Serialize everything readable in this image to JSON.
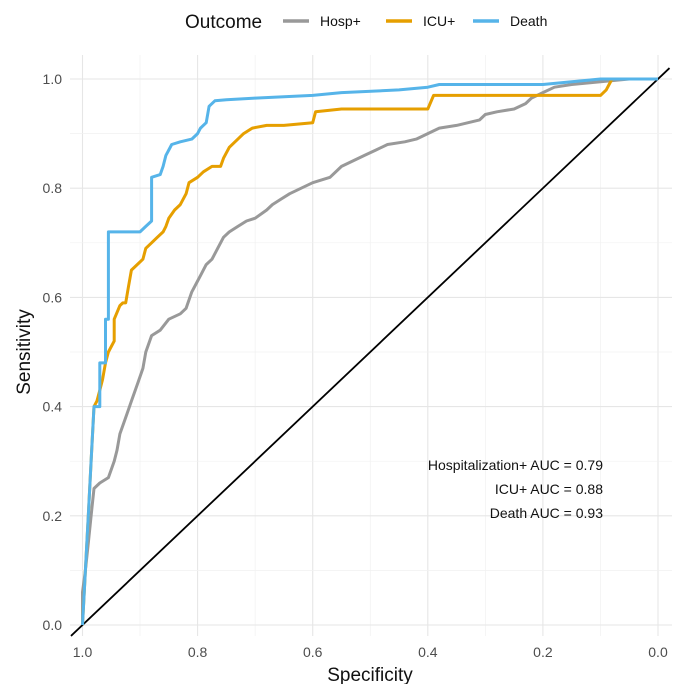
{
  "chart_data": {
    "type": "line",
    "xlabel": "Specificity",
    "ylabel": "Sensitivity",
    "xlim": [
      1.0,
      0.0
    ],
    "ylim": [
      0.0,
      1.0
    ],
    "x_reversed": true,
    "grid": true,
    "xticks": [
      "1.0",
      "0.8",
      "0.6",
      "0.4",
      "0.2",
      "0.0"
    ],
    "yticks": [
      "0.0",
      "0.2",
      "0.4",
      "0.6",
      "0.8",
      "1.0"
    ],
    "legend": {
      "title": "Outcome",
      "position": "top",
      "entries": [
        "Hosp+",
        "ICU+",
        "Death"
      ]
    },
    "reference_line": {
      "from": [
        1.0,
        0.0
      ],
      "to": [
        0.0,
        1.0
      ],
      "color": "#000000"
    },
    "annotations": [
      {
        "label": "Hospitalization+ AUC = ",
        "value": "0.79"
      },
      {
        "label": "ICU+ AUC = ",
        "value": "0.88"
      },
      {
        "label": "Death AUC = ",
        "value": "0.93"
      }
    ],
    "series": [
      {
        "name": "Hosp+",
        "color": "#999999",
        "points": [
          [
            1.0,
            0.0
          ],
          [
            1.0,
            0.06
          ],
          [
            0.995,
            0.1
          ],
          [
            0.99,
            0.15
          ],
          [
            0.985,
            0.2
          ],
          [
            0.98,
            0.25
          ],
          [
            0.97,
            0.26
          ],
          [
            0.955,
            0.27
          ],
          [
            0.945,
            0.3
          ],
          [
            0.94,
            0.32
          ],
          [
            0.935,
            0.35
          ],
          [
            0.925,
            0.38
          ],
          [
            0.915,
            0.41
          ],
          [
            0.905,
            0.44
          ],
          [
            0.895,
            0.47
          ],
          [
            0.89,
            0.5
          ],
          [
            0.88,
            0.53
          ],
          [
            0.865,
            0.54
          ],
          [
            0.85,
            0.56
          ],
          [
            0.83,
            0.57
          ],
          [
            0.82,
            0.58
          ],
          [
            0.81,
            0.61
          ],
          [
            0.8,
            0.63
          ],
          [
            0.795,
            0.64
          ],
          [
            0.785,
            0.66
          ],
          [
            0.775,
            0.67
          ],
          [
            0.765,
            0.69
          ],
          [
            0.755,
            0.71
          ],
          [
            0.745,
            0.72
          ],
          [
            0.73,
            0.73
          ],
          [
            0.715,
            0.74
          ],
          [
            0.7,
            0.745
          ],
          [
            0.68,
            0.76
          ],
          [
            0.67,
            0.77
          ],
          [
            0.655,
            0.78
          ],
          [
            0.64,
            0.79
          ],
          [
            0.62,
            0.8
          ],
          [
            0.6,
            0.81
          ],
          [
            0.57,
            0.82
          ],
          [
            0.55,
            0.84
          ],
          [
            0.53,
            0.85
          ],
          [
            0.51,
            0.86
          ],
          [
            0.49,
            0.87
          ],
          [
            0.47,
            0.88
          ],
          [
            0.44,
            0.885
          ],
          [
            0.42,
            0.89
          ],
          [
            0.4,
            0.9
          ],
          [
            0.38,
            0.91
          ],
          [
            0.35,
            0.915
          ],
          [
            0.33,
            0.92
          ],
          [
            0.31,
            0.925
          ],
          [
            0.3,
            0.935
          ],
          [
            0.28,
            0.94
          ],
          [
            0.25,
            0.945
          ],
          [
            0.23,
            0.955
          ],
          [
            0.22,
            0.965
          ],
          [
            0.2,
            0.975
          ],
          [
            0.18,
            0.985
          ],
          [
            0.15,
            0.99
          ],
          [
            0.1,
            0.995
          ],
          [
            0.05,
            1.0
          ],
          [
            0.0,
            1.0
          ]
        ]
      },
      {
        "name": "ICU+",
        "color": "#E69F00",
        "points": [
          [
            1.0,
            0.0
          ],
          [
            0.995,
            0.1
          ],
          [
            0.99,
            0.2
          ],
          [
            0.985,
            0.3
          ],
          [
            0.98,
            0.4
          ],
          [
            0.975,
            0.41
          ],
          [
            0.97,
            0.43
          ],
          [
            0.965,
            0.45
          ],
          [
            0.96,
            0.48
          ],
          [
            0.955,
            0.5
          ],
          [
            0.95,
            0.51
          ],
          [
            0.945,
            0.52
          ],
          [
            0.945,
            0.56
          ],
          [
            0.935,
            0.585
          ],
          [
            0.93,
            0.59
          ],
          [
            0.925,
            0.59
          ],
          [
            0.92,
            0.62
          ],
          [
            0.915,
            0.65
          ],
          [
            0.905,
            0.66
          ],
          [
            0.895,
            0.67
          ],
          [
            0.89,
            0.69
          ],
          [
            0.88,
            0.7
          ],
          [
            0.87,
            0.71
          ],
          [
            0.86,
            0.72
          ],
          [
            0.855,
            0.73
          ],
          [
            0.85,
            0.745
          ],
          [
            0.84,
            0.76
          ],
          [
            0.83,
            0.77
          ],
          [
            0.82,
            0.79
          ],
          [
            0.815,
            0.81
          ],
          [
            0.8,
            0.82
          ],
          [
            0.79,
            0.83
          ],
          [
            0.775,
            0.84
          ],
          [
            0.76,
            0.84
          ],
          [
            0.755,
            0.855
          ],
          [
            0.745,
            0.875
          ],
          [
            0.73,
            0.89
          ],
          [
            0.72,
            0.9
          ],
          [
            0.705,
            0.91
          ],
          [
            0.68,
            0.915
          ],
          [
            0.65,
            0.915
          ],
          [
            0.6,
            0.92
          ],
          [
            0.595,
            0.94
          ],
          [
            0.55,
            0.945
          ],
          [
            0.5,
            0.945
          ],
          [
            0.45,
            0.945
          ],
          [
            0.4,
            0.945
          ],
          [
            0.39,
            0.97
          ],
          [
            0.3,
            0.97
          ],
          [
            0.2,
            0.97
          ],
          [
            0.1,
            0.97
          ],
          [
            0.09,
            0.98
          ],
          [
            0.085,
            0.99
          ],
          [
            0.08,
            1.0
          ],
          [
            0.0,
            1.0
          ]
        ]
      },
      {
        "name": "Death",
        "color": "#56B4E9",
        "points": [
          [
            1.0,
            0.0
          ],
          [
            0.995,
            0.1
          ],
          [
            0.99,
            0.2
          ],
          [
            0.985,
            0.3
          ],
          [
            0.98,
            0.4
          ],
          [
            0.97,
            0.4
          ],
          [
            0.97,
            0.48
          ],
          [
            0.96,
            0.48
          ],
          [
            0.96,
            0.56
          ],
          [
            0.955,
            0.56
          ],
          [
            0.955,
            0.72
          ],
          [
            0.94,
            0.72
          ],
          [
            0.9,
            0.72
          ],
          [
            0.89,
            0.73
          ],
          [
            0.88,
            0.74
          ],
          [
            0.88,
            0.82
          ],
          [
            0.865,
            0.825
          ],
          [
            0.86,
            0.84
          ],
          [
            0.855,
            0.86
          ],
          [
            0.85,
            0.87
          ],
          [
            0.845,
            0.88
          ],
          [
            0.83,
            0.885
          ],
          [
            0.81,
            0.89
          ],
          [
            0.8,
            0.9
          ],
          [
            0.795,
            0.91
          ],
          [
            0.785,
            0.92
          ],
          [
            0.78,
            0.95
          ],
          [
            0.77,
            0.96
          ],
          [
            0.75,
            0.962
          ],
          [
            0.7,
            0.965
          ],
          [
            0.6,
            0.97
          ],
          [
            0.55,
            0.975
          ],
          [
            0.45,
            0.98
          ],
          [
            0.4,
            0.985
          ],
          [
            0.38,
            0.99
          ],
          [
            0.3,
            0.99
          ],
          [
            0.2,
            0.99
          ],
          [
            0.15,
            0.995
          ],
          [
            0.1,
            1.0
          ],
          [
            0.0,
            1.0
          ]
        ]
      }
    ]
  }
}
